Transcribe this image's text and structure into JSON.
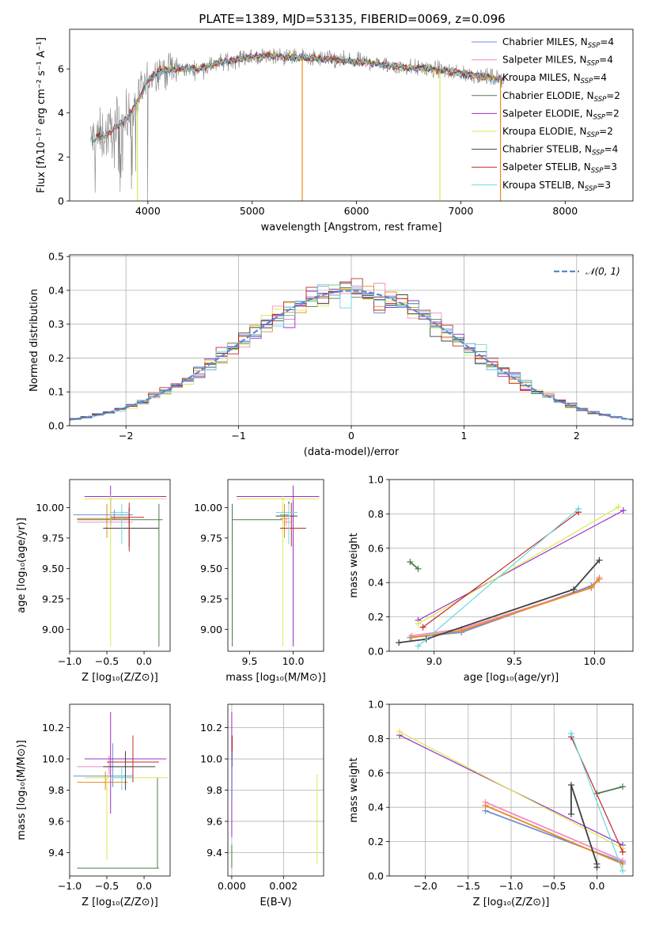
{
  "figure_title": "PLATE=1389, MJD=53135, FIBERID=0069, z=0.096",
  "colors": {
    "chab_miles": "#6e8fd3",
    "salp_miles": "#f08ac6",
    "krou_miles": "#e88a1c",
    "chab_elodie": "#4e7b4e",
    "salp_elodie": "#9a2fc7",
    "krou_elodie": "#d9ea4c",
    "chab_stelib": "#404040",
    "salp_stelib": "#c02a2a",
    "krou_stelib": "#6ad8e0",
    "data": "#808080",
    "normal": "#5b87d0"
  },
  "chart_data": [
    {
      "id": "spectrum",
      "type": "line",
      "xlabel": "wavelength [Angstrom, rest frame]",
      "ylabel": "Flux [fλ10⁻¹⁷ erg cm⁻² s⁻¹ A⁻¹]",
      "xlim": [
        3250,
        8650
      ],
      "ylim": [
        0,
        7.8
      ],
      "xticks": [
        4000,
        5000,
        6000,
        7000,
        8000
      ],
      "yticks": [
        0,
        2,
        4,
        6
      ],
      "legend_position": "top-right",
      "continuum": {
        "x": [
          3450,
          3600,
          3700,
          3800,
          3900,
          4000,
          4100,
          4300,
          4500,
          4700,
          4900,
          5200,
          5500,
          5800,
          6100,
          6400,
          6700,
          7000,
          7300,
          7410
        ],
        "y": [
          2.8,
          3.0,
          3.4,
          3.7,
          4.5,
          5.5,
          5.9,
          6.0,
          6.0,
          6.3,
          6.5,
          6.6,
          6.5,
          6.4,
          6.3,
          6.1,
          6.0,
          5.8,
          5.6,
          5.5
        ]
      },
      "series": [
        {
          "name": "Chabrier MILES, N_SSP=4",
          "label": "Chabrier MILES, N",
          "sub": "SSP",
          "tail": "=4",
          "color_key": "chab_miles"
        },
        {
          "name": "Salpeter MILES, N_SSP=4",
          "label": "Salpeter MILES, N",
          "sub": "SSP",
          "tail": "=4",
          "color_key": "salp_miles"
        },
        {
          "name": "Kroupa MILES, N_SSP=4",
          "label": "Kroupa MILES, N",
          "sub": "SSP",
          "tail": "=4",
          "color_key": "krou_miles"
        },
        {
          "name": "Chabrier ELODIE, N_SSP=2",
          "label": "Chabrier ELODIE, N",
          "sub": "SSP",
          "tail": "=2",
          "color_key": "chab_elodie"
        },
        {
          "name": "Salpeter ELODIE, N_SSP=2",
          "label": "Salpeter ELODIE, N",
          "sub": "SSP",
          "tail": "=2",
          "color_key": "salp_elodie"
        },
        {
          "name": "Kroupa ELODIE, N_SSP=2",
          "label": "Kroupa ELODIE, N",
          "sub": "SSP",
          "tail": "=2",
          "color_key": "krou_elodie"
        },
        {
          "name": "Chabrier STELIB, N_SSP=4",
          "label": "Chabrier STELIB, N",
          "sub": "SSP",
          "tail": "=4",
          "color_key": "chab_stelib"
        },
        {
          "name": "Salpeter STELIB, N_SSP=3",
          "label": "Salpeter STELIB, N",
          "sub": "SSP",
          "tail": "=3",
          "color_key": "salp_stelib"
        },
        {
          "name": "Kroupa STELIB, N_SSP=3",
          "label": "Kroupa STELIB, N",
          "sub": "SSP",
          "tail": "=3",
          "color_key": "krou_stelib"
        }
      ]
    },
    {
      "id": "residuals",
      "type": "histogram",
      "xlabel": "(data-model)/error",
      "ylabel": "Normed distribution",
      "xlim": [
        -2.5,
        2.5
      ],
      "ylim": [
        0,
        0.505
      ],
      "xticks": [
        -2,
        -1,
        0,
        1,
        2
      ],
      "yticks": [
        0.0,
        0.1,
        0.2,
        0.3,
        0.4,
        0.5
      ],
      "grid": true,
      "legend_position": "top-right",
      "legend_label": "𝒩(0, 1)",
      "bin_width": 0.1
    },
    {
      "id": "age_vs_Z",
      "type": "errorbar",
      "xlabel": "Z [log₁₀(Z/Z⊙)]",
      "ylabel": "age  [log₁₀(age/yr)]",
      "xlim": [
        -1.0,
        0.35
      ],
      "ylim": [
        8.82,
        10.23
      ],
      "xticks": [
        -1.0,
        -0.5,
        0.0
      ],
      "yticks": [
        9.0,
        9.25,
        9.5,
        9.75,
        10.0
      ],
      "points": [
        {
          "color_key": "chab_miles",
          "x": -0.4,
          "y": 9.94,
          "xlo": -0.95,
          "xhi": -0.15,
          "ylo": 9.9,
          "yhi": 9.98
        },
        {
          "color_key": "salp_miles",
          "x": -0.45,
          "y": 9.88,
          "xlo": -0.9,
          "xhi": -0.15,
          "ylo": 9.85,
          "yhi": 9.91
        },
        {
          "color_key": "krou_miles",
          "x": -0.5,
          "y": 9.91,
          "xlo": -0.9,
          "xhi": -0.2,
          "ylo": 9.75,
          "yhi": 10.03
        },
        {
          "color_key": "chab_elodie",
          "x": 0.2,
          "y": 9.9,
          "xlo": -0.9,
          "xhi": 0.25,
          "ylo": 8.86,
          "yhi": 10.03
        },
        {
          "color_key": "salp_elodie",
          "x": -0.45,
          "y": 10.09,
          "xlo": -0.8,
          "xhi": 0.3,
          "ylo": 9.85,
          "yhi": 10.18
        },
        {
          "color_key": "krou_elodie",
          "x": -0.45,
          "y": 10.07,
          "xlo": -0.8,
          "xhi": 0.3,
          "ylo": 8.86,
          "yhi": 10.1
        },
        {
          "color_key": "chab_stelib",
          "x": -0.2,
          "y": 9.83,
          "xlo": -0.55,
          "xhi": 0.2,
          "ylo": 9.68,
          "yhi": 10.0
        },
        {
          "color_key": "salp_stelib",
          "x": -0.2,
          "y": 9.92,
          "xlo": -0.45,
          "xhi": 0.0,
          "ylo": 9.64,
          "yhi": 10.04
        },
        {
          "color_key": "krou_stelib",
          "x": -0.3,
          "y": 9.96,
          "xlo": -0.45,
          "xhi": -0.2,
          "ylo": 9.7,
          "yhi": 10.03
        }
      ]
    },
    {
      "id": "age_vs_mass",
      "type": "errorbar",
      "xlabel": "mass [log₁₀(M/M⊙)]",
      "ylabel": "",
      "xlim": [
        9.25,
        10.35
      ],
      "ylim": [
        8.82,
        10.23
      ],
      "xticks": [
        9.5,
        10.0
      ],
      "yticks": [
        9.0,
        9.25,
        9.5,
        9.75,
        10.0
      ],
      "points": [
        {
          "color_key": "chab_miles",
          "x": 9.9,
          "y": 9.94,
          "xlo": 9.85,
          "xhi": 9.95,
          "ylo": 9.9,
          "yhi": 9.98
        },
        {
          "color_key": "salp_miles",
          "x": 9.92,
          "y": 9.88,
          "xlo": 9.88,
          "xhi": 9.98,
          "ylo": 9.85,
          "yhi": 9.91
        },
        {
          "color_key": "krou_miles",
          "x": 9.9,
          "y": 9.91,
          "xlo": 9.85,
          "xhi": 9.95,
          "ylo": 9.75,
          "yhi": 10.03
        },
        {
          "color_key": "chab_elodie",
          "x": 9.3,
          "y": 9.9,
          "xlo": 9.3,
          "xhi": 9.88,
          "ylo": 8.86,
          "yhi": 10.03
        },
        {
          "color_key": "salp_elodie",
          "x": 10.0,
          "y": 10.09,
          "xlo": 9.35,
          "xhi": 10.3,
          "ylo": 8.86,
          "yhi": 10.18
        },
        {
          "color_key": "krou_elodie",
          "x": 9.88,
          "y": 10.07,
          "xlo": 9.35,
          "xhi": 10.3,
          "ylo": 8.86,
          "yhi": 10.1
        },
        {
          "color_key": "chab_stelib",
          "x": 9.95,
          "y": 9.93,
          "xlo": 9.8,
          "xhi": 10.05,
          "ylo": 9.8,
          "yhi": 10.05
        },
        {
          "color_key": "salp_stelib",
          "x": 9.98,
          "y": 9.83,
          "xlo": 9.85,
          "xhi": 10.15,
          "ylo": 9.68,
          "yhi": 10.04
        },
        {
          "color_key": "krou_stelib",
          "x": 9.95,
          "y": 9.96,
          "xlo": 9.8,
          "xhi": 10.05,
          "ylo": 9.7,
          "yhi": 10.03
        }
      ]
    },
    {
      "id": "weight_vs_age",
      "type": "line",
      "xlabel": "age  [log₁₀(age/yr)]",
      "ylabel": "mass weight",
      "xlim": [
        8.72,
        10.24
      ],
      "ylim": [
        0.0,
        1.0
      ],
      "xticks": [
        9.0,
        9.5,
        10.0
      ],
      "yticks": [
        0.0,
        0.2,
        0.4,
        0.6,
        0.8,
        1.0
      ],
      "grid": true,
      "series": [
        {
          "color_key": "chab_miles",
          "x": [
            8.85,
            9.17,
            9.98,
            10.03
          ],
          "y": [
            0.08,
            0.11,
            0.38,
            0.42
          ]
        },
        {
          "color_key": "salp_miles",
          "x": [
            8.86,
            9.17,
            9.98,
            10.03
          ],
          "y": [
            0.09,
            0.13,
            0.37,
            0.43
          ]
        },
        {
          "color_key": "krou_miles",
          "x": [
            8.86,
            9.17,
            9.98,
            10.03
          ],
          "y": [
            0.08,
            0.12,
            0.37,
            0.42
          ]
        },
        {
          "color_key": "chab_elodie",
          "x": [
            8.85,
            8.9
          ],
          "y": [
            0.52,
            0.48
          ]
        },
        {
          "color_key": "salp_elodie",
          "x": [
            8.9,
            10.18
          ],
          "y": [
            0.18,
            0.82
          ]
        },
        {
          "color_key": "krou_elodie",
          "x": [
            8.9,
            10.15
          ],
          "y": [
            0.16,
            0.84
          ]
        },
        {
          "color_key": "chab_stelib",
          "x": [
            8.78,
            8.95,
            9.87,
            10.03
          ],
          "y": [
            0.05,
            0.07,
            0.36,
            0.53
          ]
        },
        {
          "color_key": "salp_stelib",
          "x": [
            8.93,
            9.9
          ],
          "y": [
            0.14,
            0.81
          ]
        },
        {
          "color_key": "krou_stelib",
          "x": [
            8.9,
            9.9
          ],
          "y": [
            0.03,
            0.83
          ]
        }
      ]
    },
    {
      "id": "mass_vs_Z",
      "type": "errorbar",
      "xlabel": "Z [log₁₀(Z/Z⊙)]",
      "ylabel": "mass [log₁₀(M/M⊙)]",
      "xlim": [
        -1.0,
        0.35
      ],
      "ylim": [
        9.25,
        10.35
      ],
      "xticks": [
        -1.0,
        -0.5,
        0.0
      ],
      "yticks": [
        9.4,
        9.6,
        9.8,
        10.0,
        10.2
      ],
      "points": [
        {
          "color_key": "chab_miles",
          "x": -0.42,
          "y": 9.89,
          "xlo": -0.95,
          "xhi": -0.15,
          "ylo": 9.82,
          "yhi": 10.1
        },
        {
          "color_key": "salp_miles",
          "x": -0.47,
          "y": 9.95,
          "xlo": -0.9,
          "xhi": -0.15,
          "ylo": 9.9,
          "yhi": 10.02
        },
        {
          "color_key": "krou_miles",
          "x": -0.52,
          "y": 9.85,
          "xlo": -0.9,
          "xhi": -0.22,
          "ylo": 9.8,
          "yhi": 9.92
        },
        {
          "color_key": "chab_elodie",
          "x": 0.18,
          "y": 9.3,
          "xlo": -0.9,
          "xhi": 0.2,
          "ylo": 9.3,
          "yhi": 9.88
        },
        {
          "color_key": "salp_elodie",
          "x": -0.45,
          "y": 10.0,
          "xlo": -0.8,
          "xhi": 0.3,
          "ylo": 9.65,
          "yhi": 10.3
        },
        {
          "color_key": "krou_elodie",
          "x": -0.5,
          "y": 9.88,
          "xlo": -0.8,
          "xhi": 0.32,
          "ylo": 9.35,
          "yhi": 9.9
        },
        {
          "color_key": "chab_stelib",
          "x": -0.25,
          "y": 9.95,
          "xlo": -0.55,
          "xhi": 0.15,
          "ylo": 9.8,
          "yhi": 10.05
        },
        {
          "color_key": "salp_stelib",
          "x": -0.15,
          "y": 9.98,
          "xlo": -0.5,
          "xhi": 0.2,
          "ylo": 9.85,
          "yhi": 10.15
        },
        {
          "color_key": "krou_stelib",
          "x": -0.3,
          "y": 9.88,
          "xlo": -0.45,
          "xhi": -0.15,
          "ylo": 9.8,
          "yhi": 9.95
        }
      ]
    },
    {
      "id": "mass_vs_ebv",
      "type": "errorbar",
      "xlabel": "E(B-V)",
      "ylabel": "",
      "xlim": [
        -0.00015,
        0.00355
      ],
      "ylim": [
        9.25,
        10.35
      ],
      "xticks": [
        0.0,
        0.002
      ],
      "xtick_labels": [
        "0.000",
        "0.002"
      ],
      "yticks": [
        9.4,
        9.6,
        9.8,
        10.0,
        10.2
      ],
      "grid": true,
      "points": [
        {
          "color_key": "krou_elodie",
          "x": 0.0033,
          "y": 9.6,
          "xlo": 0.0033,
          "xhi": 0.0033,
          "ylo": 9.33,
          "yhi": 9.9
        },
        {
          "color_key": "salp_elodie",
          "x": 0.0,
          "y": 10.0,
          "xlo": 0.0,
          "xhi": 0.0,
          "ylo": 9.5,
          "yhi": 10.3
        },
        {
          "color_key": "salp_stelib",
          "x": 2e-05,
          "y": 10.05,
          "xlo": 2e-05,
          "xhi": 2e-05,
          "ylo": 9.95,
          "yhi": 10.15
        },
        {
          "color_key": "chab_miles",
          "x": 1e-05,
          "y": 9.89,
          "xlo": 1e-05,
          "xhi": 1e-05,
          "ylo": 9.75,
          "yhi": 10.05
        },
        {
          "color_key": "chab_elodie",
          "x": 0.0,
          "y": 9.3,
          "xlo": 0.0,
          "xhi": 0.0,
          "ylo": 9.3,
          "yhi": 9.45
        }
      ]
    },
    {
      "id": "weight_vs_Z",
      "type": "line",
      "xlabel": "Z [log₁₀(Z/Z⊙)]",
      "ylabel": "mass weight",
      "xlim": [
        -2.42,
        0.42
      ],
      "ylim": [
        0.0,
        1.0
      ],
      "xticks": [
        -2.0,
        -1.5,
        -1.0,
        -0.5,
        0.0
      ],
      "yticks": [
        0.0,
        0.2,
        0.4,
        0.6,
        0.8,
        1.0
      ],
      "grid": true,
      "series": [
        {
          "color_key": "chab_miles",
          "x": [
            -1.3,
            0.3
          ],
          "y": [
            0.38,
            0.08
          ]
        },
        {
          "color_key": "salp_miles",
          "x": [
            -1.3,
            0.3
          ],
          "y": [
            0.43,
            0.09
          ]
        },
        {
          "color_key": "krou_miles",
          "x": [
            -1.3,
            0.3
          ],
          "y": [
            0.41,
            0.07
          ]
        },
        {
          "color_key": "chab_elodie",
          "x": [
            0.0,
            0.3
          ],
          "y": [
            0.48,
            0.52
          ]
        },
        {
          "color_key": "salp_elodie",
          "x": [
            -2.3,
            0.3
          ],
          "y": [
            0.82,
            0.18
          ]
        },
        {
          "color_key": "krou_elodie",
          "x": [
            -2.3,
            0.3
          ],
          "y": [
            0.84,
            0.16
          ]
        },
        {
          "color_key": "chab_stelib",
          "x": [
            -0.3,
            -0.3,
            0.0,
            0.0
          ],
          "y": [
            0.36,
            0.53,
            0.07,
            0.05
          ]
        },
        {
          "color_key": "salp_stelib",
          "x": [
            -0.3,
            0.3
          ],
          "y": [
            0.81,
            0.14
          ]
        },
        {
          "color_key": "krou_stelib",
          "x": [
            -0.3,
            0.3
          ],
          "y": [
            0.83,
            0.03
          ]
        }
      ]
    }
  ]
}
